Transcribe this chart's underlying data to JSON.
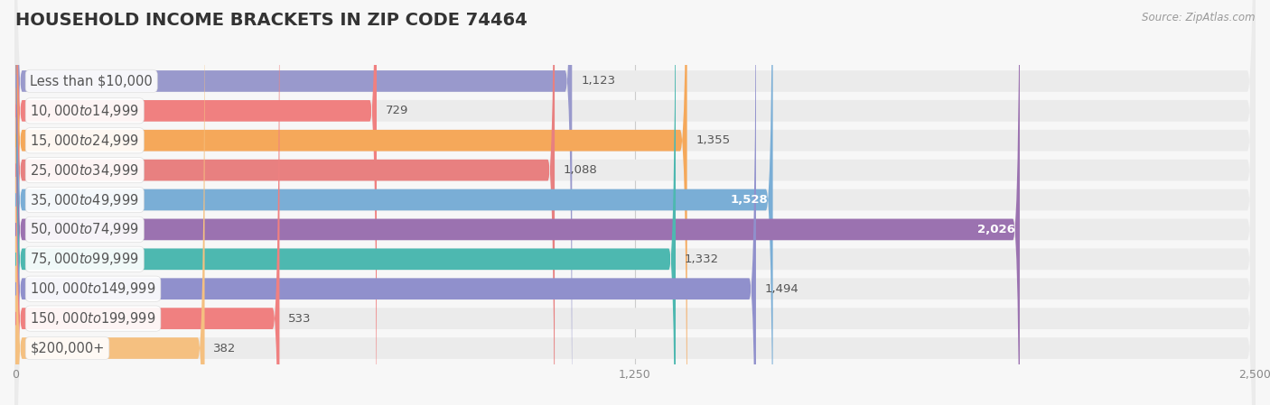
{
  "title": "HOUSEHOLD INCOME BRACKETS IN ZIP CODE 74464",
  "source": "Source: ZipAtlas.com",
  "categories": [
    "Less than $10,000",
    "$10,000 to $14,999",
    "$15,000 to $24,999",
    "$25,000 to $34,999",
    "$35,000 to $49,999",
    "$50,000 to $74,999",
    "$75,000 to $99,999",
    "$100,000 to $149,999",
    "$150,000 to $199,999",
    "$200,000+"
  ],
  "values": [
    1123,
    729,
    1355,
    1088,
    1528,
    2026,
    1332,
    1494,
    533,
    382
  ],
  "bar_colors": [
    "#9999cc",
    "#f08080",
    "#f5a85a",
    "#e88080",
    "#7aaed6",
    "#9b72b0",
    "#4db8b0",
    "#9090cc",
    "#f08080",
    "#f5c080"
  ],
  "xlim_data": [
    0,
    2500
  ],
  "xticks": [
    0,
    1250,
    2500
  ],
  "background_color": "#f7f7f7",
  "row_bg_color": "#ebebeb",
  "title_fontsize": 14,
  "label_fontsize": 10.5,
  "value_fontsize": 9.5,
  "white_text_bars": [
    "$35,000 to $49,999",
    "$50,000 to $74,999"
  ]
}
